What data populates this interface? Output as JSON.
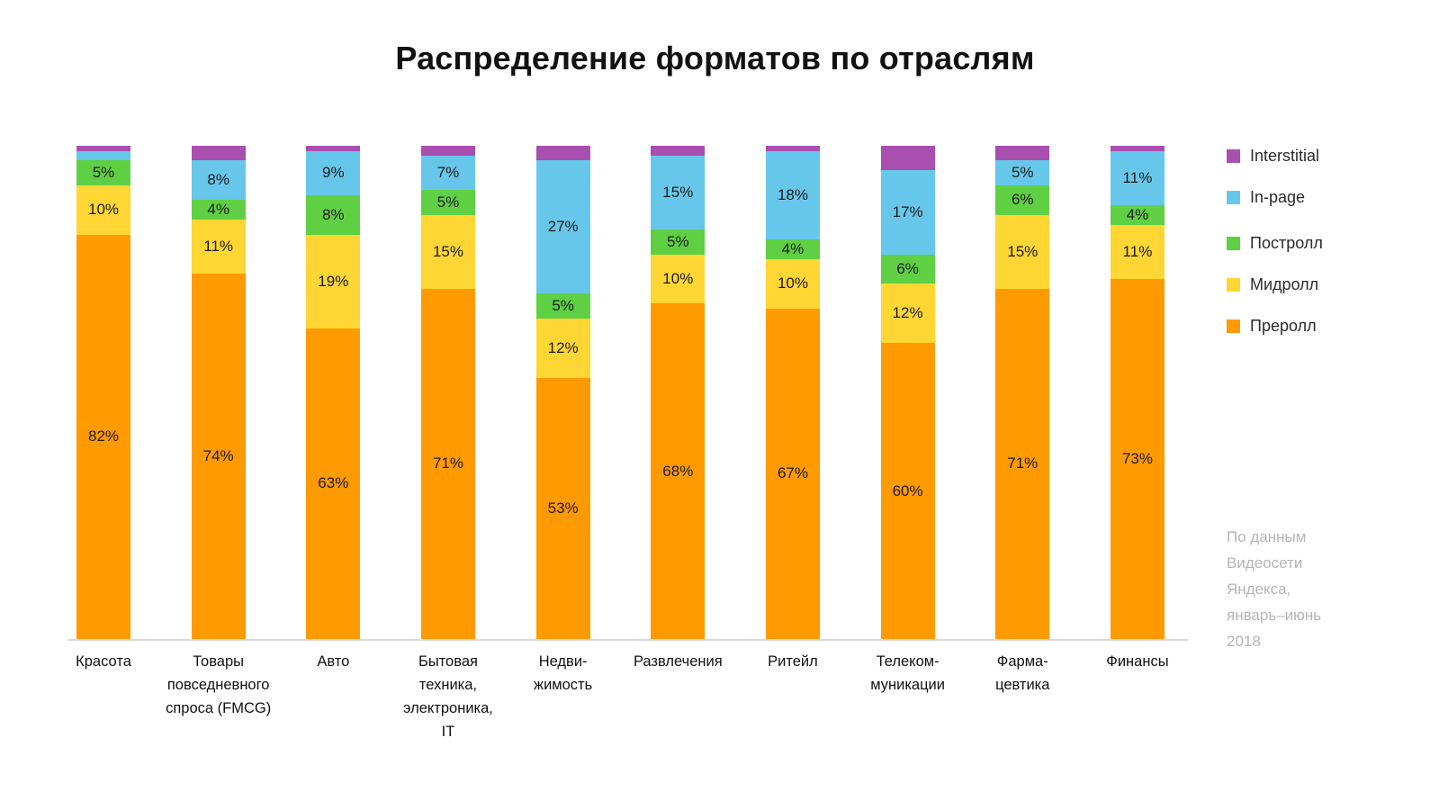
{
  "title": "Распределение форматов по отраслям",
  "source_note": "По данным\nВидеосети\nЯндекса,\nянварь–июнь\n2018",
  "legend": {
    "groups": [
      [
        {
          "key": "interstitial",
          "label": "Interstitial",
          "color": "#a94fb0"
        },
        {
          "key": "in-page",
          "label": "In-page",
          "color": "#67c7ea"
        }
      ],
      [
        {
          "key": "postroll",
          "label": "Постролл",
          "color": "#5fd044"
        },
        {
          "key": "midroll",
          "label": "Мидролл",
          "color": "#ffd633"
        },
        {
          "key": "preroll",
          "label": "Преролл",
          "color": "#ff9a00"
        }
      ]
    ]
  },
  "chart_data": {
    "type": "bar",
    "stacked": true,
    "title": "Распределение форматов по отраслям",
    "xlabel": "",
    "ylabel": "",
    "ylim": [
      0,
      100
    ],
    "grid": false,
    "legend_position": "right",
    "categories": [
      "Красота",
      "Товары\nповседневного\nспроса (FMCG)",
      "Авто",
      "Бытовая\nтехника,\nэлектроника,\nIT",
      "Недви-\nжимость",
      "Развлечения",
      "Ритейл",
      "Телеком-\nмуникации",
      "Фарма-\nцевтика",
      "Финансы"
    ],
    "series": [
      {
        "key": "preroll",
        "name": "Преролл",
        "color": "#ff9a00",
        "values": [
          82,
          74,
          63,
          71,
          53,
          68,
          67,
          60,
          71,
          73
        ],
        "labels": [
          "82%",
          "74%",
          "63%",
          "71%",
          "53%",
          "68%",
          "67%",
          "60%",
          "71%",
          "73%"
        ]
      },
      {
        "key": "midroll",
        "name": "Мидролл",
        "color": "#ffd633",
        "values": [
          10,
          11,
          19,
          15,
          12,
          10,
          10,
          12,
          15,
          11
        ],
        "labels": [
          "10%",
          "11%",
          "19%",
          "15%",
          "12%",
          "10%",
          "10%",
          "12%",
          "15%",
          "11%"
        ]
      },
      {
        "key": "postroll",
        "name": "Постролл",
        "color": "#5fd044",
        "values": [
          5,
          4,
          8,
          5,
          5,
          5,
          4,
          6,
          6,
          4
        ],
        "labels": [
          "5%",
          "4%",
          "8%",
          "5%",
          "5%",
          "5%",
          "4%",
          "6%",
          "6%",
          "4%"
        ]
      },
      {
        "key": "in-page",
        "name": "In-page",
        "color": "#67c7ea",
        "values": [
          2,
          8,
          9,
          7,
          27,
          15,
          18,
          17,
          5,
          11
        ],
        "labels": [
          "",
          "8%",
          "9%",
          "7%",
          "27%",
          "15%",
          "18%",
          "17%",
          "5%",
          "11%"
        ]
      },
      {
        "key": "interstitial",
        "name": "Interstitial",
        "color": "#a94fb0",
        "values": [
          1,
          3,
          1,
          2,
          3,
          2,
          1,
          5,
          3,
          1
        ],
        "labels": [
          "",
          "",
          "",
          "",
          "",
          "",
          "",
          "",
          "",
          ""
        ]
      }
    ]
  }
}
